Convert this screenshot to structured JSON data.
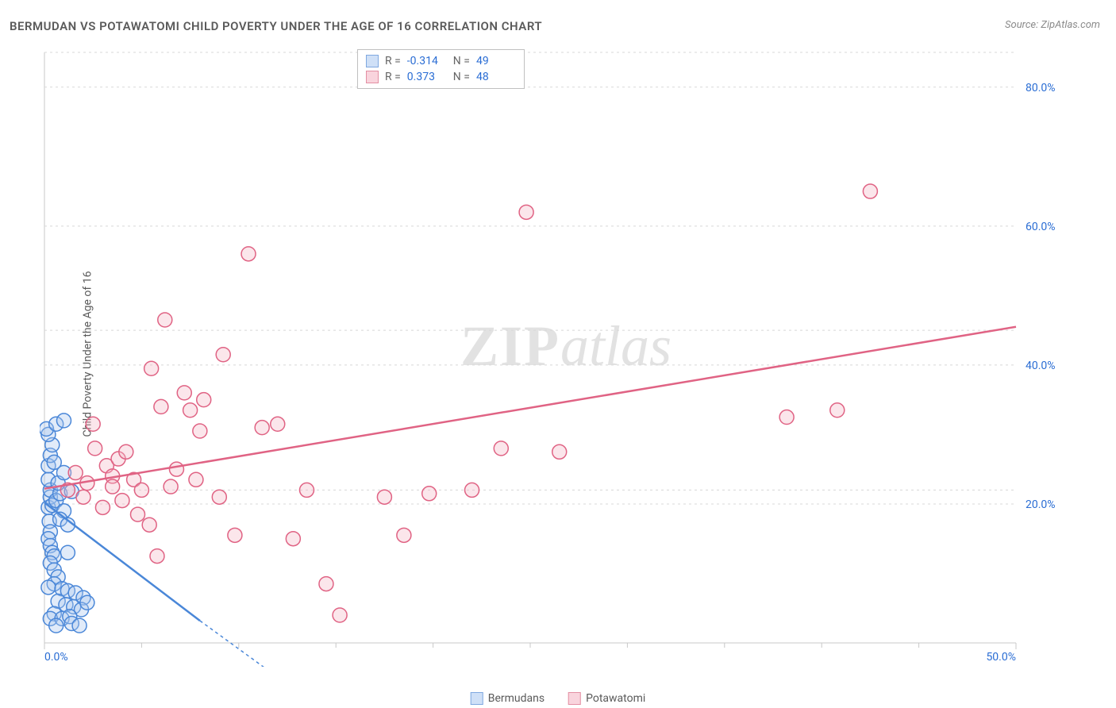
{
  "title": "BERMUDAN VS POTAWATOMI CHILD POVERTY UNDER THE AGE OF 16 CORRELATION CHART",
  "source": "Source: ZipAtlas.com",
  "ylabel": "Child Poverty Under the Age of 16",
  "watermark": {
    "part1": "ZIP",
    "part2": "atlas"
  },
  "statsBox": {
    "rows": [
      {
        "color_fill": "#cfe0f7",
        "color_stroke": "#7fa8e0",
        "r_label": "R =",
        "r_val": "-0.314",
        "n_label": "N =",
        "n_val": "49"
      },
      {
        "color_fill": "#f9d4dd",
        "color_stroke": "#e38fa3",
        "r_label": "R =",
        "r_val": " 0.373",
        "n_label": "N =",
        "n_val": "48"
      }
    ]
  },
  "bottomLegend": [
    {
      "color_fill": "#cfe0f7",
      "color_stroke": "#7fa8e0",
      "label": "Bermudans"
    },
    {
      "color_fill": "#f9d4dd",
      "color_stroke": "#e38fa3",
      "label": "Potawatomi"
    }
  ],
  "chart": {
    "type": "scatter",
    "plot_bg": "#ffffff",
    "grid_color": "#d8d8d8",
    "grid_dash": "3,4",
    "axis_color": "#c8c8c8",
    "tick_label_color": "#2a6dd4",
    "tick_label_fontsize": 14,
    "xlim": [
      0,
      50
    ],
    "ylim": [
      0,
      85
    ],
    "x_ticks_major": [
      0,
      50
    ],
    "x_ticks_minor": [
      5,
      10,
      15,
      20,
      25,
      30,
      35,
      40,
      45
    ],
    "y_ticks_major": [
      20,
      40,
      60,
      80
    ],
    "y_grid_extra": [
      22,
      45,
      85
    ],
    "point_radius": 9,
    "point_stroke_width": 1.5,
    "point_fill_opacity": 0.35,
    "series": [
      {
        "name": "Bermudans",
        "stroke": "#4a87d8",
        "fill": "#a8c6ee",
        "trend": {
          "x1": 0,
          "y1": 20.2,
          "x2": 8,
          "y2": 3.2,
          "dash_ext_x": 14,
          "dash_ext_y": -9
        },
        "points": [
          [
            0.2,
            19.5
          ],
          [
            0.3,
            21
          ],
          [
            0.3,
            22
          ],
          [
            0.25,
            17.5
          ],
          [
            0.3,
            16
          ],
          [
            0.4,
            19.8
          ],
          [
            0.2,
            23.5
          ],
          [
            0.2,
            25.5
          ],
          [
            0.3,
            27
          ],
          [
            0.4,
            28.5
          ],
          [
            0.2,
            30
          ],
          [
            0.1,
            30.8
          ],
          [
            0.6,
            31.5
          ],
          [
            1.0,
            32
          ],
          [
            0.2,
            15
          ],
          [
            0.3,
            14
          ],
          [
            0.4,
            13
          ],
          [
            0.5,
            12.5
          ],
          [
            0.3,
            11.5
          ],
          [
            0.5,
            10.5
          ],
          [
            0.7,
            9.5
          ],
          [
            0.5,
            8.5
          ],
          [
            0.2,
            8
          ],
          [
            0.9,
            7.8
          ],
          [
            1.2,
            7.5
          ],
          [
            1.6,
            7.2
          ],
          [
            2.0,
            6.5
          ],
          [
            0.7,
            6
          ],
          [
            1.1,
            5.5
          ],
          [
            1.5,
            5.2
          ],
          [
            1.9,
            4.8
          ],
          [
            2.2,
            5.8
          ],
          [
            0.5,
            4.2
          ],
          [
            0.3,
            3.5
          ],
          [
            0.9,
            3.5
          ],
          [
            1.3,
            3.8
          ],
          [
            0.6,
            2.5
          ],
          [
            1.4,
            2.8
          ],
          [
            1.8,
            2.5
          ],
          [
            0.6,
            20.5
          ],
          [
            0.8,
            21.5
          ],
          [
            1.0,
            19
          ],
          [
            0.8,
            17.8
          ],
          [
            1.2,
            17
          ],
          [
            0.7,
            23
          ],
          [
            1.0,
            24.5
          ],
          [
            1.4,
            21.8
          ],
          [
            0.5,
            26
          ],
          [
            1.2,
            13
          ]
        ]
      },
      {
        "name": "Potawatomi",
        "stroke": "#e06384",
        "fill": "#f4b8c7",
        "trend": {
          "x1": 0,
          "y1": 22.2,
          "x2": 50,
          "y2": 45.5
        },
        "points": [
          [
            1.2,
            22
          ],
          [
            1.6,
            24.5
          ],
          [
            2.2,
            23
          ],
          [
            2.5,
            31.5
          ],
          [
            2.6,
            28
          ],
          [
            3.2,
            25.5
          ],
          [
            3.5,
            24
          ],
          [
            3.8,
            26.5
          ],
          [
            4.2,
            27.5
          ],
          [
            4.6,
            23.5
          ],
          [
            5.0,
            22
          ],
          [
            5.5,
            39.5
          ],
          [
            6.0,
            34
          ],
          [
            6.2,
            46.5
          ],
          [
            6.8,
            25
          ],
          [
            7.2,
            36
          ],
          [
            7.5,
            33.5
          ],
          [
            8.0,
            30.5
          ],
          [
            8.2,
            35
          ],
          [
            9.0,
            21
          ],
          [
            9.2,
            41.5
          ],
          [
            9.8,
            15.5
          ],
          [
            10.5,
            56
          ],
          [
            11.2,
            31
          ],
          [
            12.0,
            31.5
          ],
          [
            12.8,
            15
          ],
          [
            13.5,
            22
          ],
          [
            14.5,
            8.5
          ],
          [
            15.2,
            4
          ],
          [
            17.5,
            21
          ],
          [
            18.5,
            15.5
          ],
          [
            19.8,
            21.5
          ],
          [
            22.0,
            22
          ],
          [
            23.5,
            28
          ],
          [
            24.8,
            62
          ],
          [
            26.5,
            27.5
          ],
          [
            38.2,
            32.5
          ],
          [
            40.8,
            33.5
          ],
          [
            42.5,
            65
          ],
          [
            3.0,
            19.5
          ],
          [
            4.8,
            18.5
          ],
          [
            5.4,
            17
          ],
          [
            4.0,
            20.5
          ],
          [
            2.0,
            21
          ],
          [
            3.5,
            22.5
          ],
          [
            6.5,
            22.5
          ],
          [
            7.8,
            23.5
          ],
          [
            5.8,
            12.5
          ]
        ]
      }
    ]
  }
}
